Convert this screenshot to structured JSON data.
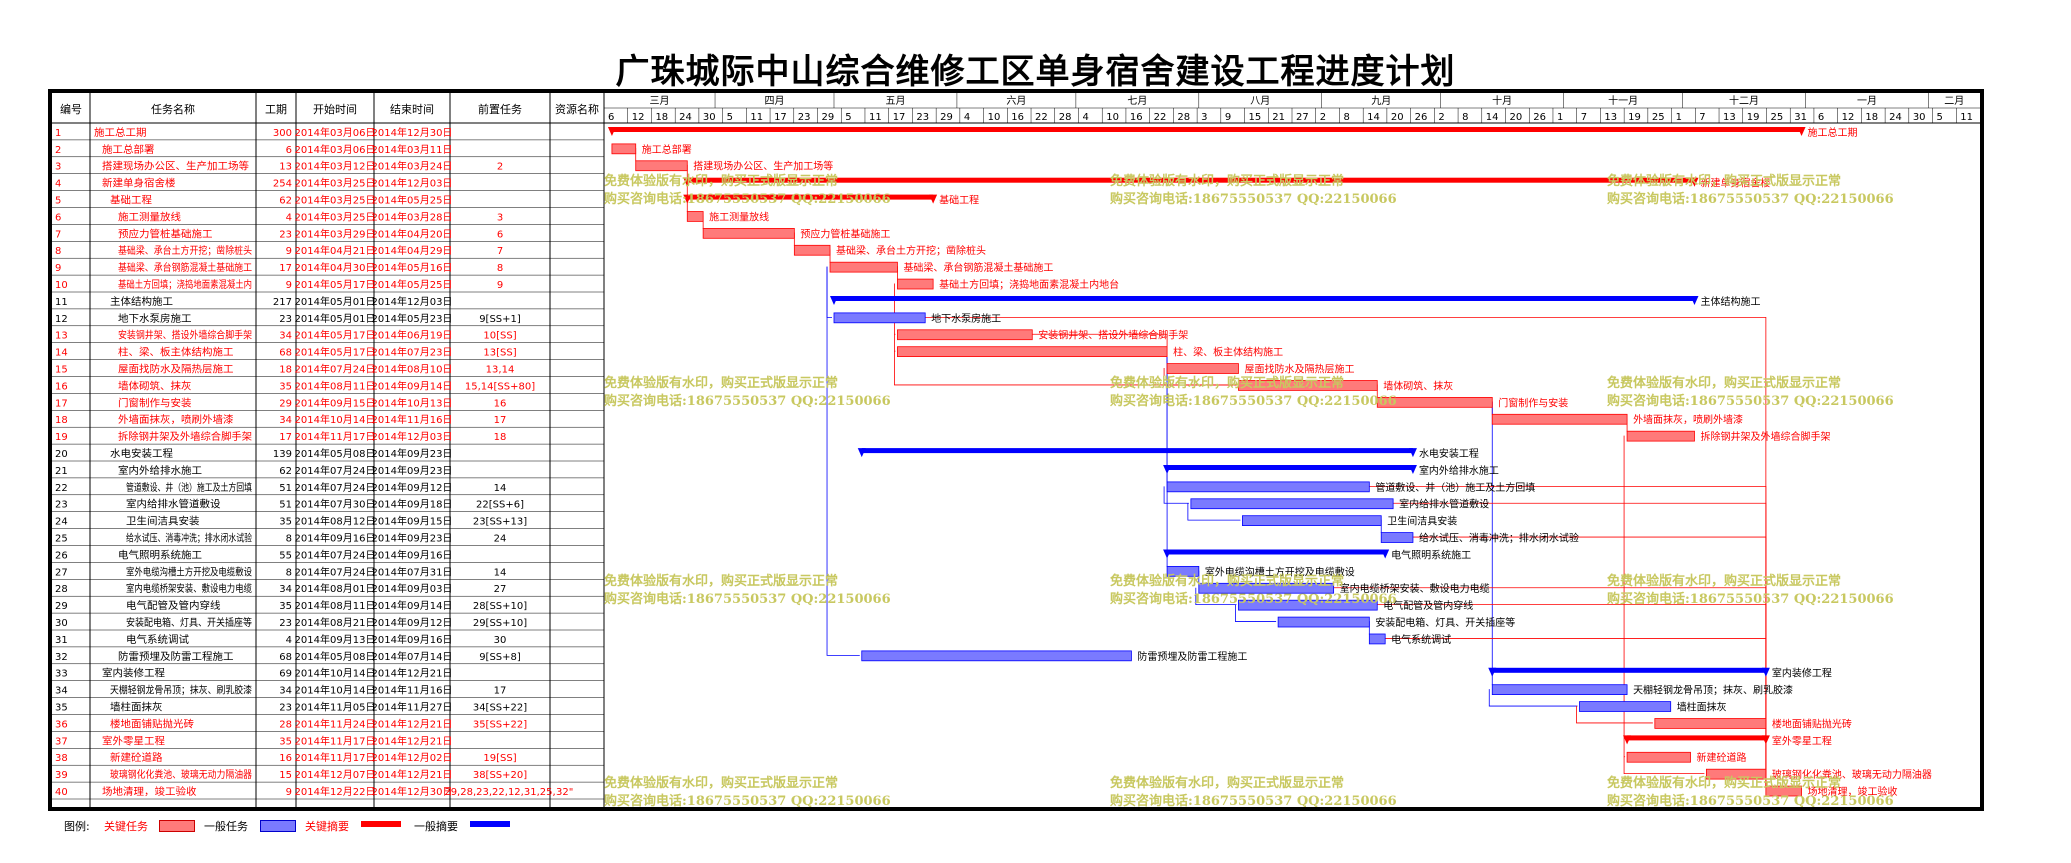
{
  "title": "广珠城际中山综合维修工区单身宿舍建设工程进度计划",
  "colors": {
    "critical": "#ff0000",
    "normal_task": "#0000ff",
    "critical_fill": "#ff7a7a",
    "normal_fill": "#7a7aff",
    "watermark": "#c8c860"
  },
  "columns": [
    "编号",
    "任务名称",
    "工期",
    "开始时间",
    "结束时间",
    "前置任务",
    "资源名称"
  ],
  "months": [
    "三月",
    "四月",
    "五月",
    "六月",
    "七月",
    "八月",
    "九月",
    "十月",
    "十一月",
    "十二月",
    "一月",
    "二月"
  ],
  "day_ticks": [
    "6",
    "12",
    "18",
    "24",
    "30",
    "5",
    "11",
    "17",
    "23",
    "29",
    "5",
    "11",
    "17",
    "23",
    "29",
    "4",
    "10",
    "16",
    "22",
    "28",
    "4",
    "10",
    "16",
    "22",
    "28",
    "3",
    "9",
    "15",
    "21",
    "27",
    "2",
    "8",
    "14",
    "20",
    "26",
    "2",
    "8",
    "14",
    "20",
    "26",
    "1",
    "7",
    "13",
    "19",
    "25",
    "1",
    "7",
    "13",
    "19",
    "25",
    "31",
    "6",
    "12",
    "18",
    "24",
    "30",
    "5",
    "11"
  ],
  "watermark": {
    "line1": "免费体验版有水印，购买正式版显示正常",
    "line2": "购买咨询电话:18675550537 QQ:22150066"
  },
  "legend": {
    "label": "图例:",
    "critical_task": "关键任务",
    "normal_task": "一般任务",
    "critical_summary": "关键摘要",
    "normal_summary": "一般摘要"
  },
  "chart_data": {
    "type": "gantt",
    "title": "广珠城际中山综合维修工区单身宿舍建设工程进度计划",
    "time_axis": {
      "start": "2014-03-04",
      "end": "2015-02-14",
      "unit": "day"
    },
    "tasks": [
      {
        "id": "1",
        "name": "施工总工期",
        "duration": "300",
        "start": "2014年03月06日",
        "end": "2014年12月30日",
        "pred": "",
        "res": "",
        "s": "2014-03-06",
        "e": "2014-12-30",
        "type": "summary",
        "critical": true,
        "level": 0,
        "label": "施工总工期"
      },
      {
        "id": "2",
        "name": "施工总部署",
        "duration": "6",
        "start": "2014年03月06日",
        "end": "2014年03月11日",
        "pred": "",
        "res": "",
        "s": "2014-03-06",
        "e": "2014-03-11",
        "type": "task",
        "critical": true,
        "level": 1,
        "label": "施工总部署"
      },
      {
        "id": "3",
        "name": "搭建现场办公区、生产加工场等",
        "duration": "13",
        "start": "2014年03月12日",
        "end": "2014年03月24日",
        "pred": "2",
        "res": "",
        "s": "2014-03-12",
        "e": "2014-03-24",
        "type": "task",
        "critical": true,
        "level": 1,
        "label": "搭建现场办公区、生产加工场等"
      },
      {
        "id": "4",
        "name": "新建单身宿舍楼",
        "duration": "254",
        "start": "2014年03月25日",
        "end": "2014年12月03日",
        "pred": "",
        "res": "",
        "s": "2014-03-25",
        "e": "2014-12-03",
        "type": "summary",
        "critical": true,
        "level": 1,
        "label": "新建单身宿舍楼"
      },
      {
        "id": "5",
        "name": "基础工程",
        "duration": "62",
        "start": "2014年03月25日",
        "end": "2014年05月25日",
        "pred": "",
        "res": "",
        "s": "2014-03-25",
        "e": "2014-05-25",
        "type": "summary",
        "critical": true,
        "level": 2,
        "label": "基础工程"
      },
      {
        "id": "6",
        "name": "施工测量放线",
        "duration": "4",
        "start": "2014年03月25日",
        "end": "2014年03月28日",
        "pred": "3",
        "res": "",
        "s": "2014-03-25",
        "e": "2014-03-28",
        "type": "task",
        "critical": true,
        "level": 3,
        "label": "施工测量放线"
      },
      {
        "id": "7",
        "name": "预应力管桩基础施工",
        "duration": "23",
        "start": "2014年03月29日",
        "end": "2014年04月20日",
        "pred": "6",
        "res": "",
        "s": "2014-03-29",
        "e": "2014-04-20",
        "type": "task",
        "critical": true,
        "level": 3,
        "label": "预应力管桩基础施工"
      },
      {
        "id": "8",
        "name": "基础梁、承台土方开挖；凿除桩头",
        "duration": "9",
        "start": "2014年04月21日",
        "end": "2014年04月29日",
        "pred": "7",
        "res": "",
        "s": "2014-04-21",
        "e": "2014-04-29",
        "type": "task",
        "critical": true,
        "level": 3,
        "label": "基础梁、承台土方开挖；凿除桩头"
      },
      {
        "id": "9",
        "name": "基础梁、承台钢筋混凝土基础施工",
        "duration": "17",
        "start": "2014年04月30日",
        "end": "2014年05月16日",
        "pred": "8",
        "res": "",
        "s": "2014-04-30",
        "e": "2014-05-16",
        "type": "task",
        "critical": true,
        "level": 3,
        "label": "基础梁、承台钢筋混凝土基础施工"
      },
      {
        "id": "10",
        "name": "基础土方回填；浇捣地面素混凝土内",
        "duration": "9",
        "start": "2014年05月17日",
        "end": "2014年05月25日",
        "pred": "9",
        "res": "",
        "s": "2014-05-17",
        "e": "2014-05-25",
        "type": "task",
        "critical": true,
        "level": 3,
        "label": "基础土方回填；浇捣地面素混凝土内地台"
      },
      {
        "id": "11",
        "name": "主体结构施工",
        "duration": "217",
        "start": "2014年05月01日",
        "end": "2014年12月03日",
        "pred": "",
        "res": "",
        "s": "2014-05-01",
        "e": "2014-12-03",
        "type": "summary",
        "critical": false,
        "level": 2,
        "label": "主体结构施工"
      },
      {
        "id": "12",
        "name": "地下水泵房施工",
        "duration": "23",
        "start": "2014年05月01日",
        "end": "2014年05月23日",
        "pred": "9[SS+1]",
        "res": "",
        "s": "2014-05-01",
        "e": "2014-05-23",
        "type": "task",
        "critical": false,
        "level": 3,
        "label": "地下水泵房施工"
      },
      {
        "id": "13",
        "name": "安装钢井架、搭设外墙综合脚手架",
        "duration": "34",
        "start": "2014年05月17日",
        "end": "2014年06月19日",
        "pred": "10[SS]",
        "res": "",
        "s": "2014-05-17",
        "e": "2014-06-19",
        "type": "task",
        "critical": true,
        "level": 3,
        "label": "安装钢井架、搭设外墙综合脚手架"
      },
      {
        "id": "14",
        "name": "柱、梁、板主体结构施工",
        "duration": "68",
        "start": "2014年05月17日",
        "end": "2014年07月23日",
        "pred": "13[SS]",
        "res": "",
        "s": "2014-05-17",
        "e": "2014-07-23",
        "type": "task",
        "critical": true,
        "level": 3,
        "label": "柱、梁、板主体结构施工"
      },
      {
        "id": "15",
        "name": "屋面找防水及隔热层施工",
        "duration": "18",
        "start": "2014年07月24日",
        "end": "2014年08月10日",
        "pred": "13,14",
        "res": "",
        "s": "2014-07-24",
        "e": "2014-08-10",
        "type": "task",
        "critical": true,
        "level": 3,
        "label": "屋面找防水及隔热层施工"
      },
      {
        "id": "16",
        "name": "墙体砌筑、抹灰",
        "duration": "35",
        "start": "2014年08月11日",
        "end": "2014年09月14日",
        "pred": "15,14[SS+80]",
        "res": "",
        "s": "2014-08-11",
        "e": "2014-09-14",
        "type": "task",
        "critical": true,
        "level": 3,
        "label": "墙体砌筑、抹灰"
      },
      {
        "id": "17",
        "name": "门窗制作与安装",
        "duration": "29",
        "start": "2014年09月15日",
        "end": "2014年10月13日",
        "pred": "16",
        "res": "",
        "s": "2014-09-15",
        "e": "2014-10-13",
        "type": "task",
        "critical": true,
        "level": 3,
        "label": "门窗制作与安装"
      },
      {
        "id": "18",
        "name": "外墙面抹灰，喷刷外墙漆",
        "duration": "34",
        "start": "2014年10月14日",
        "end": "2014年11月16日",
        "pred": "17",
        "res": "",
        "s": "2014-10-14",
        "e": "2014-11-16",
        "type": "task",
        "critical": true,
        "level": 3,
        "label": "外墙面抹灰，喷刷外墙漆"
      },
      {
        "id": "19",
        "name": "拆除钢井架及外墙综合脚手架",
        "duration": "17",
        "start": "2014年11月17日",
        "end": "2014年12月03日",
        "pred": "18",
        "res": "",
        "s": "2014-11-17",
        "e": "2014-12-03",
        "type": "task",
        "critical": true,
        "level": 3,
        "label": "拆除钢井架及外墙综合脚手架"
      },
      {
        "id": "20",
        "name": "水电安装工程",
        "duration": "139",
        "start": "2014年05月08日",
        "end": "2014年09月23日",
        "pred": "",
        "res": "",
        "s": "2014-05-08",
        "e": "2014-09-23",
        "type": "summary",
        "critical": false,
        "level": 2,
        "label": "水电安装工程"
      },
      {
        "id": "21",
        "name": "室内外给排水施工",
        "duration": "62",
        "start": "2014年07月24日",
        "end": "2014年09月23日",
        "pred": "",
        "res": "",
        "s": "2014-07-24",
        "e": "2014-09-23",
        "type": "summary",
        "critical": false,
        "level": 3,
        "label": "室内外给排水施工"
      },
      {
        "id": "22",
        "name": "管道敷设、井（池）施工及土方回填",
        "duration": "51",
        "start": "2014年07月24日",
        "end": "2014年09月12日",
        "pred": "14",
        "res": "",
        "s": "2014-07-24",
        "e": "2014-09-12",
        "type": "task",
        "critical": false,
        "level": 4,
        "label": "管道敷设、井（池）施工及土方回填"
      },
      {
        "id": "23",
        "name": "室内给排水管道敷设",
        "duration": "51",
        "start": "2014年07月30日",
        "end": "2014年09月18日",
        "pred": "22[SS+6]",
        "res": "",
        "s": "2014-07-30",
        "e": "2014-09-18",
        "type": "task",
        "critical": false,
        "level": 4,
        "label": "室内给排水管道敷设"
      },
      {
        "id": "24",
        "name": "卫生间洁具安装",
        "duration": "35",
        "start": "2014年08月12日",
        "end": "2014年09月15日",
        "pred": "23[SS+13]",
        "res": "",
        "s": "2014-08-12",
        "e": "2014-09-15",
        "type": "task",
        "critical": false,
        "level": 4,
        "label": "卫生间洁具安装"
      },
      {
        "id": "25",
        "name": "给水试压、消毒冲洗；排水闭水试验",
        "duration": "8",
        "start": "2014年09月16日",
        "end": "2014年09月23日",
        "pred": "24",
        "res": "",
        "s": "2014-09-16",
        "e": "2014-09-23",
        "type": "task",
        "critical": false,
        "level": 4,
        "label": "给水试压、消毒冲洗；排水闭水试验"
      },
      {
        "id": "26",
        "name": "电气照明系统施工",
        "duration": "55",
        "start": "2014年07月24日",
        "end": "2014年09月16日",
        "pred": "",
        "res": "",
        "s": "2014-07-24",
        "e": "2014-09-16",
        "type": "summary",
        "critical": false,
        "level": 3,
        "label": "电气照明系统施工"
      },
      {
        "id": "27",
        "name": "室外电缆沟槽土方开挖及电缆敷设",
        "duration": "8",
        "start": "2014年07月24日",
        "end": "2014年07月31日",
        "pred": "14",
        "res": "",
        "s": "2014-07-24",
        "e": "2014-07-31",
        "type": "task",
        "critical": false,
        "level": 4,
        "label": "室外电缆沟槽土方开挖及电缆敷设"
      },
      {
        "id": "28",
        "name": "室内电缆桥架安装、敷设电力电缆",
        "duration": "34",
        "start": "2014年08月01日",
        "end": "2014年09月03日",
        "pred": "27",
        "res": "",
        "s": "2014-08-01",
        "e": "2014-09-03",
        "type": "task",
        "critical": false,
        "level": 4,
        "label": "室内电缆桥架安装、敷设电力电缆"
      },
      {
        "id": "29",
        "name": "电气配管及管内穿线",
        "duration": "35",
        "start": "2014年08月11日",
        "end": "2014年09月14日",
        "pred": "28[SS+10]",
        "res": "",
        "s": "2014-08-11",
        "e": "2014-09-14",
        "type": "task",
        "critical": false,
        "level": 4,
        "label": "电气配管及管内穿线"
      },
      {
        "id": "30",
        "name": "安装配电箱、灯具、开关插座等",
        "duration": "23",
        "start": "2014年08月21日",
        "end": "2014年09月12日",
        "pred": "29[SS+10]",
        "res": "",
        "s": "2014-08-21",
        "e": "2014-09-12",
        "type": "task",
        "critical": false,
        "level": 4,
        "label": "安装配电箱、灯具、开关插座等"
      },
      {
        "id": "31",
        "name": "电气系统调试",
        "duration": "4",
        "start": "2014年09月13日",
        "end": "2014年09月16日",
        "pred": "30",
        "res": "",
        "s": "2014-09-13",
        "e": "2014-09-16",
        "type": "task",
        "critical": false,
        "level": 4,
        "label": "电气系统调试"
      },
      {
        "id": "32",
        "name": "防雷预埋及防雷工程施工",
        "duration": "68",
        "start": "2014年05月08日",
        "end": "2014年07月14日",
        "pred": "9[SS+8]",
        "res": "",
        "s": "2014-05-08",
        "e": "2014-07-14",
        "type": "task",
        "critical": false,
        "level": 3,
        "label": "防雷预埋及防雷工程施工"
      },
      {
        "id": "33",
        "name": "室内装修工程",
        "duration": "69",
        "start": "2014年10月14日",
        "end": "2014年12月21日",
        "pred": "",
        "res": "",
        "s": "2014-10-14",
        "e": "2014-12-21",
        "type": "summary",
        "critical": false,
        "level": 1,
        "label": "室内装修工程"
      },
      {
        "id": "34",
        "name": "天棚轻钢龙骨吊顶；抹灰、刷乳胶漆",
        "duration": "34",
        "start": "2014年10月14日",
        "end": "2014年11月16日",
        "pred": "17",
        "res": "",
        "s": "2014-10-14",
        "e": "2014-11-16",
        "type": "task",
        "critical": false,
        "level": 2,
        "label": "天棚轻钢龙骨吊顶；抹灰、刷乳胶漆"
      },
      {
        "id": "35",
        "name": "墙柱面抹灰",
        "duration": "23",
        "start": "2014年11月05日",
        "end": "2014年11月27日",
        "pred": "34[SS+22]",
        "res": "",
        "s": "2014-11-05",
        "e": "2014-11-27",
        "type": "task",
        "critical": false,
        "level": 2,
        "label": "墙柱面抹灰"
      },
      {
        "id": "36",
        "name": "楼地面铺贴抛光砖",
        "duration": "28",
        "start": "2014年11月24日",
        "end": "2014年12月21日",
        "pred": "35[SS+22]",
        "res": "",
        "s": "2014-11-24",
        "e": "2014-12-21",
        "type": "task",
        "critical": true,
        "level": 2,
        "label": "楼地面铺贴抛光砖"
      },
      {
        "id": "37",
        "name": "室外零星工程",
        "duration": "35",
        "start": "2014年11月17日",
        "end": "2014年12月21日",
        "pred": "",
        "res": "",
        "s": "2014-11-17",
        "e": "2014-12-21",
        "type": "summary",
        "critical": true,
        "level": 1,
        "label": "室外零星工程"
      },
      {
        "id": "38",
        "name": "新建砼道路",
        "duration": "16",
        "start": "2014年11月17日",
        "end": "2014年12月02日",
        "pred": "19[SS]",
        "res": "",
        "s": "2014-11-17",
        "e": "2014-12-02",
        "type": "task",
        "critical": true,
        "level": 2,
        "label": "新建砼道路"
      },
      {
        "id": "39",
        "name": "玻璃钢化化粪池、玻璃无动力隔油器",
        "duration": "15",
        "start": "2014年12月07日",
        "end": "2014年12月21日",
        "pred": "38[SS+20]",
        "res": "",
        "s": "2014-12-07",
        "e": "2014-12-21",
        "type": "task",
        "critical": true,
        "level": 2,
        "label": "玻璃钢化化粪池、玻璃无动力隔油器"
      },
      {
        "id": "40",
        "name": "场地清理，竣工验收",
        "duration": "9",
        "start": "2014年12月22日",
        "end": "2014年12月30日",
        "pred": "29,28,23,22,12,31,25,",
        "res": "32\"",
        "s": "2014-12-22",
        "e": "2014-12-30",
        "type": "task",
        "critical": true,
        "level": 1,
        "label": "场地清理，竣工验收"
      }
    ]
  }
}
